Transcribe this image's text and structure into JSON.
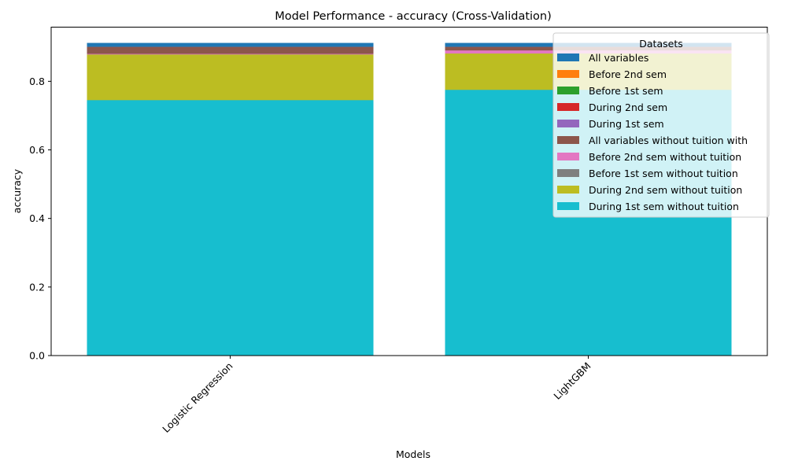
{
  "chart_data": {
    "type": "bar",
    "title": "Model Performance - accuracy (Cross-Validation)",
    "xlabel": "Models",
    "ylabel": "accuracy",
    "ylim": [
      0,
      0.958
    ],
    "yticks": [
      0.0,
      0.2,
      0.4,
      0.6,
      0.8
    ],
    "ytick_labels": [
      "0.0",
      "0.2",
      "0.4",
      "0.6",
      "0.8"
    ],
    "categories": [
      "Logistic Regression",
      "LightGBM"
    ],
    "overlay_bars": true,
    "legend_title": "Datasets",
    "legend_position": "top-right",
    "series": [
      {
        "name": "All variables",
        "color": "#1f77b4",
        "values": [
          0.912,
          0.912
        ]
      },
      {
        "name": "Before 2nd sem",
        "color": "#ff7f0e",
        "values": [
          0.9,
          0.9
        ]
      },
      {
        "name": "Before 1st sem",
        "color": "#2ca02c",
        "values": [
          0.9,
          0.9
        ]
      },
      {
        "name": "During 2nd sem",
        "color": "#d62728",
        "values": [
          0.9,
          0.9
        ]
      },
      {
        "name": "During 1st sem",
        "color": "#9467bd",
        "values": [
          0.9,
          0.9
        ]
      },
      {
        "name": "All variables without tuition with",
        "color": "#8c564b",
        "values": [
          0.9,
          0.9
        ]
      },
      {
        "name": "Before 2nd sem without tuition",
        "color": "#e377c2",
        "values": [
          0.88,
          0.89
        ]
      },
      {
        "name": "Before 1st sem without tuition",
        "color": "#7f7f7f",
        "values": [
          0.878,
          0.88
        ]
      },
      {
        "name": "During 2nd sem without tuition",
        "color": "#bcbd22",
        "values": [
          0.878,
          0.881
        ]
      },
      {
        "name": "During 1st sem without tuition",
        "color": "#17becf",
        "values": [
          0.745,
          0.775
        ]
      }
    ]
  }
}
